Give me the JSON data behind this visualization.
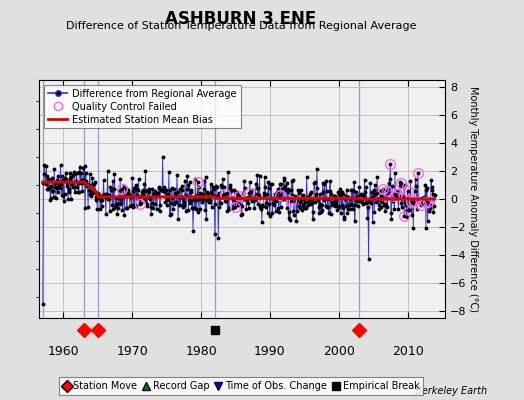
{
  "title": "ASHBURN 3 ENE",
  "subtitle": "Difference of Station Temperature Data from Regional Average",
  "ylabel": "Monthly Temperature Anomaly Difference (°C)",
  "xlabel_note": "Berkeley Earth",
  "ylim": [
    -8.5,
    8.5
  ],
  "xlim": [
    1956.5,
    2015.5
  ],
  "yticks": [
    -8,
    -6,
    -4,
    -2,
    0,
    2,
    4,
    6,
    8
  ],
  "xticks": [
    1960,
    1970,
    1980,
    1990,
    2000,
    2010
  ],
  "bg_color": "#e0e0e0",
  "plot_bg_color": "#f0f0f0",
  "data_line_color": "#3333cc",
  "data_dot_color": "#000000",
  "bias_line_color": "#dd0000",
  "qc_fail_color": "#ff66ff",
  "grid_color": "#bbbbbb",
  "vline_color": "#9999cc",
  "station_move_years": [
    1963,
    1965,
    2003
  ],
  "record_gap_years": [],
  "obs_change_years": [],
  "empirical_break_years": [
    1982
  ],
  "vertical_lines_years": [
    1957,
    1963,
    1965,
    1982,
    2003
  ],
  "seed": 42
}
